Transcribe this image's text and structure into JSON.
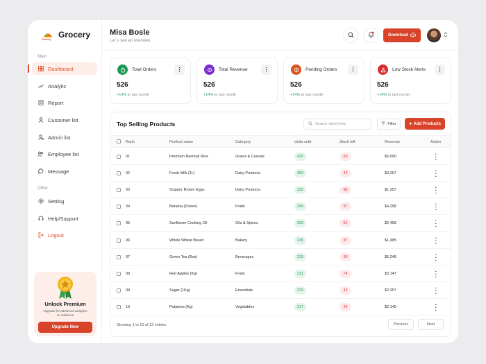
{
  "brand": {
    "name": "Grocery",
    "logo_text": "Grocery"
  },
  "header": {
    "user_name": "Misa Bosle",
    "subtitle": "Let`s see an overview",
    "download_label": "Download"
  },
  "sidebar": {
    "main_label": "Main",
    "other_label": "Other",
    "main_items": [
      {
        "label": "Dashboard",
        "icon": "grid-icon",
        "active": true
      },
      {
        "label": "Analytic",
        "icon": "trend-icon"
      },
      {
        "label": "Report",
        "icon": "file-icon"
      },
      {
        "label": "Customer list",
        "icon": "user-icon"
      },
      {
        "label": "Admin list",
        "icon": "user-gear-icon"
      },
      {
        "label": "Employee list",
        "icon": "users-icon"
      },
      {
        "label": "Message",
        "icon": "message-icon"
      }
    ],
    "other_items": [
      {
        "label": "Setting",
        "icon": "gear-icon"
      },
      {
        "label": "Help/Support",
        "icon": "headset-icon"
      },
      {
        "label": "Logout",
        "icon": "logout-icon"
      }
    ],
    "upgrade": {
      "title": "Unlock Premium",
      "subtitle": "Upgrade for advanced analytics on audience",
      "button_label": "Upgrade Now"
    }
  },
  "stats": [
    {
      "title": "Total Orders",
      "value": "526",
      "delta": "+14%",
      "delta_suffix": "to last month",
      "icon": "cart-icon",
      "icon_color": "#1f9a55"
    },
    {
      "title": "Total Revenue",
      "value": "526",
      "delta": "+14%",
      "delta_suffix": "to last month",
      "icon": "revenue-icon",
      "icon_color": "#7a2fd0"
    },
    {
      "title": "Pending Orders",
      "value": "526",
      "delta": "+14%",
      "delta_suffix": "to last month",
      "icon": "coin-icon",
      "icon_color": "#d8561f"
    },
    {
      "title": "Low Stock Alerts",
      "value": "526",
      "delta": "+14%",
      "delta_suffix": "to last month",
      "icon": "warning-icon",
      "icon_color": "#d62d2d"
    }
  ],
  "table": {
    "title": "Top Selling Products",
    "search_placeholder": "Search client here",
    "filter_label": "Filter",
    "add_label": "Add Products",
    "columns": [
      "Rank",
      "Product name",
      "Category",
      "Units sold",
      "Stock left",
      "Revenue",
      "Action"
    ],
    "rows": [
      {
        "rank": "01",
        "product": "Premium Basmati Rice",
        "category": "Grains & Cereals",
        "units": "425",
        "stock": "69",
        "revenue": "$5,500"
      },
      {
        "rank": "02",
        "product": "Fresh Milk (1L)",
        "category": "Dairy Products",
        "units": "350",
        "stock": "42",
        "revenue": "$3,257"
      },
      {
        "rank": "03",
        "product": "Organic Brown Eggs",
        "category": "Dairy Products",
        "units": "322",
        "stock": "88",
        "revenue": "$1,257"
      },
      {
        "rank": "04",
        "product": "Banana (Dozen)",
        "category": "Fruits",
        "units": "289",
        "stock": "97",
        "revenue": "$4,258"
      },
      {
        "rank": "05",
        "product": "Sunflower Cooking Oil",
        "category": "Oils & Spices",
        "units": "258",
        "stock": "52",
        "revenue": "$2,458"
      },
      {
        "rank": "06",
        "product": "Whole Wheat Bread",
        "category": "Bakery",
        "units": "236",
        "stock": "87",
        "revenue": "$1,485"
      },
      {
        "rank": "07",
        "product": "Green Tea (Box)",
        "category": "Beverages",
        "units": "233",
        "stock": "99",
        "revenue": "$5,248"
      },
      {
        "rank": "08",
        "product": "Red Apples (Kg)",
        "category": "Fruits",
        "units": "221",
        "stock": "74",
        "revenue": "$3,147"
      },
      {
        "rank": "09",
        "product": "Sugar (1Kg)",
        "category": "Essentials",
        "units": "220",
        "stock": "42",
        "revenue": "$2,357"
      },
      {
        "rank": "10",
        "product": "Potatoes (Kg)",
        "category": "Vegetables",
        "units": "217",
        "stock": "26",
        "revenue": "$2,145"
      }
    ],
    "footer": "Showing 1 to 10 of 12 entries",
    "prev_label": "Previous",
    "next_label": "Next"
  },
  "colors": {
    "accent": "#d8432a",
    "positive": "#28a06a",
    "negative": "#d6323a"
  }
}
